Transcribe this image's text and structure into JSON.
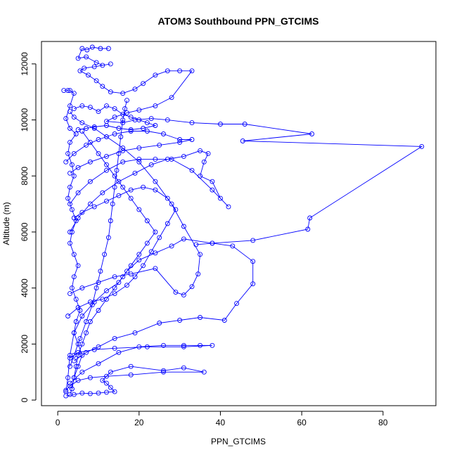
{
  "chart_data": {
    "type": "scatter",
    "title": "ATOM3 Southbound PPN_GTCIMS",
    "xlabel": "PPN_GTCIMS",
    "ylabel": "Altitude (m)",
    "xlim": [
      -4,
      93
    ],
    "ylim": [
      -200,
      12800
    ],
    "xticks": [
      "0",
      "20",
      "40",
      "60",
      "80"
    ],
    "yticks": [
      "0",
      "2000",
      "4000",
      "6000",
      "8000",
      "10000",
      "12000"
    ],
    "grid": false,
    "legend": "none",
    "style": "line+points",
    "series_color": "#0000ff",
    "series": [
      {
        "values": [
          [
            12.5,
            12550
          ],
          [
            10.5,
            12550
          ],
          [
            8.5,
            12600
          ],
          [
            7.2,
            12500
          ],
          [
            6,
            12550
          ],
          [
            5,
            12200
          ],
          [
            7,
            12250
          ],
          [
            9.5,
            12050
          ],
          [
            11,
            11950
          ],
          [
            13,
            12000
          ],
          [
            9,
            11900
          ],
          [
            6.5,
            11850
          ],
          [
            5.5,
            11750
          ],
          [
            7.5,
            11600
          ],
          [
            9.5,
            11400
          ],
          [
            11,
            11200
          ],
          [
            13,
            11000
          ],
          [
            16,
            10950
          ],
          [
            19,
            11100
          ],
          [
            21,
            11300
          ],
          [
            24,
            11600
          ],
          [
            27,
            11750
          ],
          [
            30,
            11750
          ],
          [
            33,
            11750
          ],
          [
            28,
            10800
          ],
          [
            24,
            10500
          ],
          [
            20,
            10350
          ],
          [
            17,
            10250
          ],
          [
            14,
            10100
          ],
          [
            12,
            9950
          ],
          [
            16,
            9900
          ],
          [
            19,
            10000
          ],
          [
            23,
            10050
          ],
          [
            27,
            10000
          ],
          [
            33,
            9900
          ],
          [
            40,
            9850
          ],
          [
            46,
            9850
          ],
          [
            62.5,
            9500
          ],
          [
            45.5,
            9250
          ],
          [
            89.5,
            9050
          ],
          [
            62,
            6500
          ],
          [
            61.5,
            6100
          ],
          [
            48,
            5700
          ],
          [
            38,
            5600
          ],
          [
            31,
            5750
          ],
          [
            28,
            5500
          ],
          [
            24,
            5250
          ],
          [
            20,
            5000
          ],
          [
            17,
            4600
          ],
          [
            15,
            4200
          ],
          [
            12,
            3900
          ],
          [
            9,
            3500
          ],
          [
            6,
            3000
          ],
          [
            4,
            2400
          ],
          [
            3,
            1600
          ],
          [
            2.5,
            800
          ],
          [
            2,
            300
          ]
        ]
      },
      {
        "values": [
          [
            2,
            150
          ],
          [
            4,
            200
          ],
          [
            6,
            250
          ],
          [
            8,
            230
          ],
          [
            10,
            250
          ],
          [
            12,
            280
          ],
          [
            14,
            300
          ],
          [
            13,
            450
          ],
          [
            12,
            600
          ],
          [
            11,
            700
          ],
          [
            13,
            1000
          ],
          [
            18,
            1200
          ],
          [
            26,
            1050
          ],
          [
            31,
            1150
          ],
          [
            36,
            1000
          ],
          [
            26,
            1000
          ],
          [
            18,
            900
          ],
          [
            12,
            850
          ],
          [
            8,
            800
          ],
          [
            5,
            700
          ],
          [
            3,
            500
          ],
          [
            2,
            350
          ]
        ]
      },
      {
        "values": [
          [
            3,
            600
          ],
          [
            6,
            1000
          ],
          [
            10,
            1300
          ],
          [
            15,
            1700
          ],
          [
            20,
            1900
          ],
          [
            26,
            1950
          ],
          [
            31,
            1950
          ],
          [
            35,
            1950
          ],
          [
            38,
            1950
          ],
          [
            31,
            1900
          ],
          [
            22,
            1900
          ],
          [
            14,
            1850
          ],
          [
            9,
            1800
          ],
          [
            5,
            1700
          ],
          [
            3,
            1500
          ]
        ]
      },
      {
        "values": [
          [
            4,
            1400
          ],
          [
            7,
            1700
          ],
          [
            10,
            1900
          ],
          [
            14,
            2200
          ],
          [
            19,
            2400
          ],
          [
            25,
            2750
          ],
          [
            30,
            2850
          ],
          [
            35,
            2950
          ],
          [
            41,
            2850
          ],
          [
            44,
            3450
          ],
          [
            48,
            4150
          ],
          [
            48,
            4950
          ],
          [
            43,
            5500
          ],
          [
            38,
            5600
          ],
          [
            34,
            5550
          ]
        ]
      },
      {
        "values": [
          [
            3,
            3800
          ],
          [
            6,
            4000
          ],
          [
            10,
            4200
          ],
          [
            14,
            4400
          ],
          [
            18,
            4500
          ],
          [
            24,
            4700
          ],
          [
            29,
            3850
          ],
          [
            31,
            3750
          ],
          [
            33,
            4050
          ],
          [
            34.5,
            4500
          ],
          [
            35,
            5200
          ],
          [
            31,
            6200
          ],
          [
            28,
            7000
          ],
          [
            24,
            7800
          ],
          [
            20,
            8500
          ],
          [
            16,
            9000
          ],
          [
            12,
            9400
          ],
          [
            9,
            9700
          ],
          [
            6,
            9900
          ],
          [
            4,
            10100
          ],
          [
            3,
            10300
          ]
        ]
      },
      {
        "values": [
          [
            3,
            6000
          ],
          [
            5,
            6500
          ],
          [
            8,
            7000
          ],
          [
            11,
            7400
          ],
          [
            15,
            7800
          ],
          [
            19,
            8100
          ],
          [
            23,
            8400
          ],
          [
            27,
            8600
          ],
          [
            31,
            8700
          ],
          [
            35,
            8900
          ],
          [
            37,
            8800
          ],
          [
            36,
            8500
          ],
          [
            35,
            8000
          ],
          [
            38,
            7800
          ],
          [
            40,
            7200
          ],
          [
            42,
            6900
          ],
          [
            38,
            7500
          ],
          [
            33,
            8200
          ],
          [
            28,
            8600
          ],
          [
            24,
            8600
          ],
          [
            20,
            8600
          ],
          [
            16,
            8500
          ],
          [
            12,
            8200
          ],
          [
            8,
            7800
          ],
          [
            5,
            7400
          ],
          [
            3,
            7000
          ]
        ]
      },
      {
        "values": [
          [
            2,
            8500
          ],
          [
            4,
            8800
          ],
          [
            7,
            9100
          ],
          [
            10,
            9300
          ],
          [
            14,
            9500
          ],
          [
            18,
            9600
          ],
          [
            22,
            9600
          ],
          [
            26,
            9500
          ],
          [
            30,
            9300
          ],
          [
            33,
            9300
          ],
          [
            30,
            9200
          ],
          [
            25,
            9100
          ],
          [
            20,
            9000
          ],
          [
            16,
            8900
          ],
          [
            12,
            8700
          ],
          [
            8,
            8500
          ],
          [
            5,
            8300
          ],
          [
            3,
            8100
          ]
        ]
      },
      {
        "values": [
          [
            1.5,
            11050
          ],
          [
            2.5,
            11050
          ],
          [
            3,
            11050
          ],
          [
            4,
            10950
          ],
          [
            3,
            10500
          ],
          [
            2,
            10050
          ],
          [
            3,
            9700
          ],
          [
            4.5,
            9500
          ],
          [
            3,
            9200
          ],
          [
            2.5,
            8800
          ],
          [
            3.5,
            8400
          ],
          [
            4,
            8000
          ],
          [
            3,
            7600
          ],
          [
            2.5,
            7200
          ],
          [
            3.5,
            6800
          ],
          [
            4.5,
            6400
          ],
          [
            3.5,
            6000
          ],
          [
            3,
            5600
          ],
          [
            4,
            5200
          ],
          [
            5,
            4800
          ],
          [
            4,
            4400
          ],
          [
            3.5,
            4000
          ],
          [
            4.5,
            3600
          ],
          [
            5.5,
            3200
          ],
          [
            4.5,
            2800
          ],
          [
            4,
            2400
          ],
          [
            5,
            2000
          ],
          [
            6,
            1600
          ],
          [
            5,
            1200
          ],
          [
            4,
            800
          ],
          [
            3.5,
            400
          ],
          [
            3,
            200
          ]
        ]
      },
      {
        "values": [
          [
            6,
            9600
          ],
          [
            8,
            9200
          ],
          [
            10,
            8800
          ],
          [
            12,
            8400
          ],
          [
            14,
            8000
          ],
          [
            16,
            7600
          ],
          [
            18,
            7200
          ],
          [
            20,
            6800
          ],
          [
            22,
            6400
          ],
          [
            24,
            6000
          ],
          [
            22,
            5600
          ],
          [
            20,
            5200
          ],
          [
            18,
            4800
          ],
          [
            16,
            4400
          ],
          [
            14,
            4000
          ],
          [
            12,
            3600
          ],
          [
            10,
            3200
          ],
          [
            8,
            2800
          ],
          [
            7,
            2400
          ],
          [
            6,
            2000
          ],
          [
            5,
            1600
          ],
          [
            4.5,
            1200
          ],
          [
            4,
            800
          ],
          [
            3.5,
            400
          ]
        ]
      },
      {
        "values": [
          [
            4,
            10400
          ],
          [
            6,
            10500
          ],
          [
            8,
            10450
          ],
          [
            10,
            10300
          ],
          [
            12,
            10500
          ],
          [
            14,
            10400
          ],
          [
            16,
            10200
          ],
          [
            18,
            10100
          ],
          [
            20,
            10000
          ],
          [
            22,
            9900
          ],
          [
            24,
            9800
          ],
          [
            21,
            9700
          ],
          [
            18,
            9650
          ],
          [
            15,
            9700
          ],
          [
            12,
            9800
          ],
          [
            9,
            9750
          ],
          [
            7,
            9700
          ],
          [
            5,
            9650
          ]
        ]
      },
      {
        "values": [
          [
            2.5,
            3000
          ],
          [
            5,
            3300
          ],
          [
            8,
            3500
          ],
          [
            11,
            3600
          ],
          [
            14,
            3800
          ],
          [
            17,
            4100
          ],
          [
            19,
            4400
          ],
          [
            21,
            4800
          ],
          [
            23,
            5300
          ],
          [
            25,
            5800
          ],
          [
            27,
            6300
          ],
          [
            29,
            6800
          ],
          [
            27,
            7200
          ],
          [
            24,
            7500
          ],
          [
            21,
            7600
          ],
          [
            18,
            7500
          ],
          [
            15,
            7300
          ],
          [
            12,
            7100
          ],
          [
            9,
            6900
          ],
          [
            6,
            6700
          ],
          [
            4,
            6500
          ]
        ]
      },
      {
        "values": [
          [
            3,
            1200
          ],
          [
            4,
            1600
          ],
          [
            5.5,
            2200
          ],
          [
            7,
            2800
          ],
          [
            8.5,
            3400
          ],
          [
            9.5,
            4000
          ],
          [
            10.5,
            4600
          ],
          [
            11.5,
            5200
          ],
          [
            12.5,
            5800
          ],
          [
            13,
            6400
          ],
          [
            13.5,
            7000
          ],
          [
            14,
            7600
          ],
          [
            14.5,
            8200
          ],
          [
            15,
            8800
          ],
          [
            15.5,
            9400
          ],
          [
            16,
            10000
          ],
          [
            16.5,
            10400
          ],
          [
            17,
            10700
          ]
        ]
      }
    ]
  }
}
